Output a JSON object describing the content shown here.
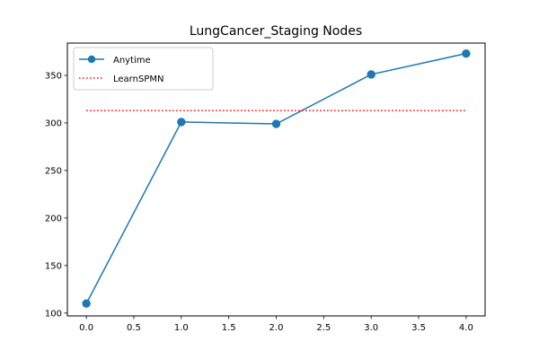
{
  "chart_data": {
    "type": "line",
    "title": "LungCancer_Staging Nodes",
    "xlabel": "",
    "ylabel": "",
    "xlim": [
      -0.2,
      4.2
    ],
    "ylim": [
      97,
      384
    ],
    "x_ticks": [
      "0.0",
      "0.5",
      "1.0",
      "1.5",
      "2.0",
      "2.5",
      "3.0",
      "3.5",
      "4.0"
    ],
    "y_ticks": [
      "100",
      "150",
      "200",
      "250",
      "300",
      "350"
    ],
    "grid": false,
    "legend_position": "top-left",
    "series": [
      {
        "name": "Anytime",
        "color": "#1f77b4",
        "style": "solid",
        "marker": "circle",
        "x": [
          0,
          1,
          2,
          3,
          4
        ],
        "y": [
          110,
          301,
          299,
          351,
          373
        ]
      },
      {
        "name": "LearnSPMN",
        "color": "#ff0000",
        "style": "dotted",
        "marker": "none",
        "x": [
          0,
          4
        ],
        "y": [
          313,
          313
        ]
      }
    ]
  }
}
